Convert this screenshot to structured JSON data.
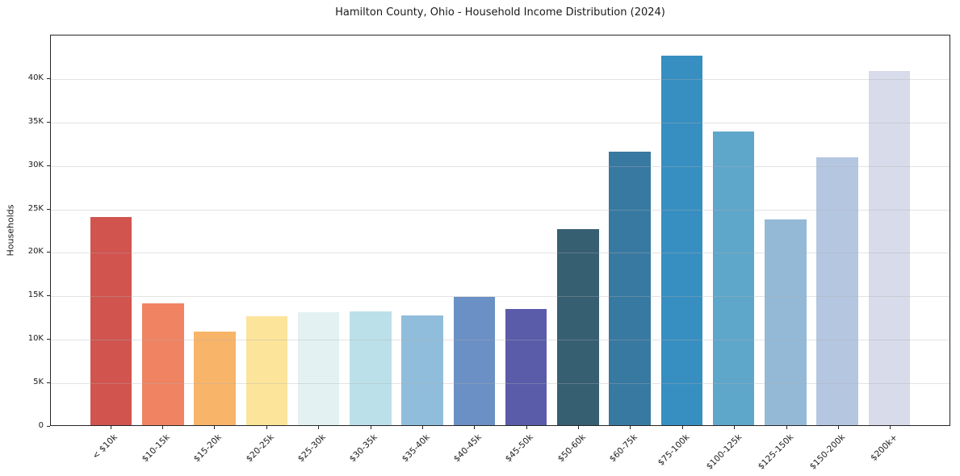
{
  "chart_data": {
    "type": "bar",
    "title": "Hamilton County, Ohio - Household Income Distribution (2024)",
    "xlabel": "",
    "ylabel": "Households",
    "categories": [
      "< $10k",
      "$10-15k",
      "$15-20k",
      "$20-25k",
      "$25-30k",
      "$30-35k",
      "$35-40k",
      "$40-45k",
      "$45-50k",
      "$50-60k",
      "$60-75k",
      "$75-100k",
      "$100-125k",
      "$125-150k",
      "$150-200k",
      "$200k+"
    ],
    "values": [
      24000,
      14100,
      10800,
      12600,
      13000,
      13100,
      12700,
      14800,
      13400,
      22600,
      31600,
      42700,
      33900,
      23800,
      30900,
      40900
    ],
    "bar_colors": [
      "#d1544f",
      "#f08362",
      "#f8b469",
      "#fce49a",
      "#e4f1f3",
      "#bce0e9",
      "#91bddc",
      "#6b90c5",
      "#5a5caa",
      "#365f72",
      "#3879a2",
      "#378fc1",
      "#5fa6cb",
      "#93b9d7",
      "#b5c6e1",
      "#d8dbe9"
    ],
    "ylim": [
      0,
      45000
    ],
    "yticks": [
      {
        "value": 0,
        "label": "0"
      },
      {
        "value": 5000,
        "label": "5K"
      },
      {
        "value": 10000,
        "label": "10K"
      },
      {
        "value": 15000,
        "label": "15K"
      },
      {
        "value": 20000,
        "label": "20K"
      },
      {
        "value": 25000,
        "label": "25K"
      },
      {
        "value": 30000,
        "label": "30K"
      },
      {
        "value": 35000,
        "label": "35K"
      },
      {
        "value": 40000,
        "label": "40K"
      }
    ],
    "grid": "horizontal-over-bars",
    "legend": "none",
    "background": "#ffffff",
    "axis_color": "#262626",
    "gridline_color": "rgba(176,176,176,0.35)",
    "xtick_rotation_deg": 45
  }
}
